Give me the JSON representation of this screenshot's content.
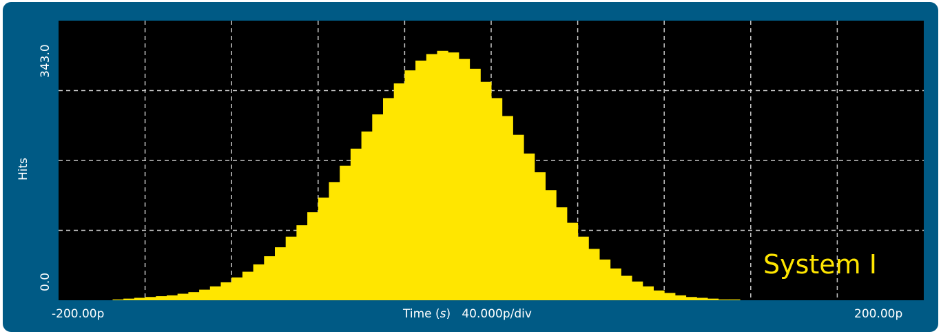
{
  "chart_data": {
    "type": "bar",
    "title": "",
    "xlabel": "Time (s)",
    "xlabel_parts": [
      "Time (",
      "s",
      ")"
    ],
    "scale_label": "40.000p/div",
    "ylabel": "Hits",
    "x_range_labels": [
      "-200.00p",
      "200.00p"
    ],
    "y_range_labels": [
      "343.0",
      "0.0"
    ],
    "xlim": [
      -200,
      200
    ],
    "ylim": [
      0,
      343
    ],
    "x_unit": "ps",
    "grid": true,
    "legend": "System I",
    "bar_color": "#ffe600",
    "background_color": "#000000",
    "grid_color": "#c8c8c8",
    "series": [
      {
        "x_start": -180,
        "x_step": 5,
        "values": [
          0,
          1,
          2,
          3,
          4,
          5,
          6,
          8,
          10,
          13,
          17,
          22,
          28,
          35,
          44,
          54,
          65,
          78,
          92,
          108,
          126,
          145,
          165,
          186,
          207,
          228,
          248,
          266,
          282,
          294,
          302,
          306,
          304,
          296,
          284,
          268,
          248,
          226,
          203,
          180,
          157,
          135,
          114,
          95,
          78,
          63,
          50,
          39,
          30,
          23,
          17,
          12,
          9,
          6,
          4,
          3,
          2,
          1,
          1,
          0,
          0,
          0,
          0,
          0,
          0,
          0,
          0,
          0,
          0,
          0,
          0,
          0,
          0
        ]
      }
    ]
  }
}
